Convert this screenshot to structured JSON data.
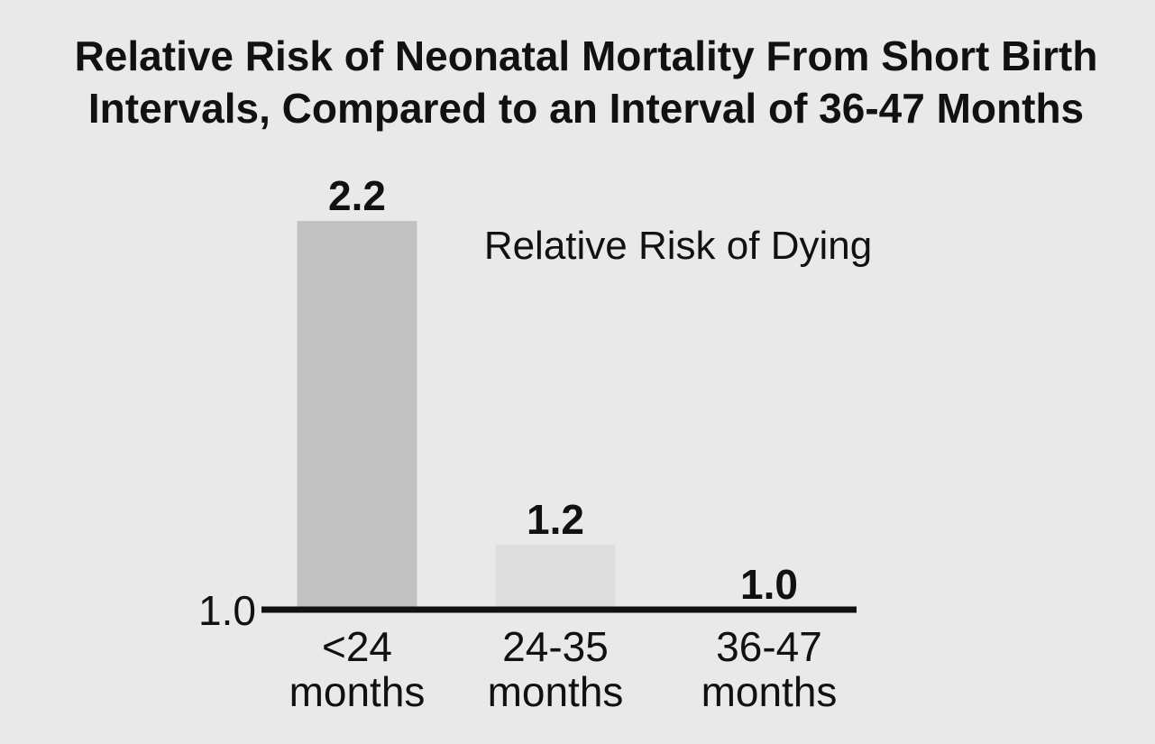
{
  "chart_data": {
    "type": "bar",
    "title": "Relative Risk of Neonatal Mortality From Short Birth Intervals, Compared to an Interval of 36-47 Months",
    "title_lines": [
      "Relative Risk of Neonatal Mortality From Short Birth",
      "Intervals, Compared to an Interval of 36-47 Months"
    ],
    "categories": [
      [
        "<24",
        "months"
      ],
      [
        "24-35",
        "months"
      ],
      [
        "36-47",
        "months"
      ]
    ],
    "series": [
      {
        "name": "Relative Risk of Dying",
        "values": [
          2.2,
          1.2,
          1.0
        ],
        "value_labels": [
          "2.2",
          "1.2",
          "1.0"
        ],
        "colors": [
          "#c2c2c2",
          "#dedede",
          "#dedede"
        ]
      }
    ],
    "baseline": 1.0,
    "baseline_label": "1.0",
    "ylim": [
      1.0,
      2.2
    ],
    "grid": false,
    "legend_placement": "top-right"
  }
}
